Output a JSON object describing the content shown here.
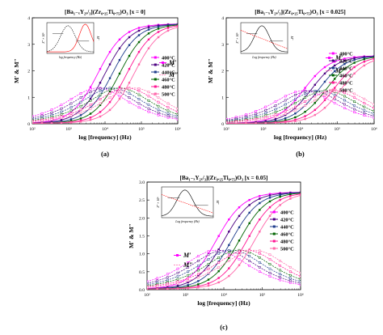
{
  "chart_data": [
    {
      "type": "line",
      "panel": "a",
      "title": "[Ba₁₋ₓY₂ₓ/₃](Zr₀.₂₅Ti₀.₇₅)O₃ [x = 0]",
      "xlabel": "log [frequency] (Hz)",
      "ylabel": "M′ & M″",
      "caption": "(a)",
      "xscale": "log",
      "xlim": [
        100,
        1000000
      ],
      "ylim": [
        0,
        4
      ],
      "xticks": [
        "10²",
        "10³",
        "10⁴",
        "10⁵",
        "10⁶"
      ],
      "yticks": [
        "0",
        "1",
        "2",
        "3",
        "4"
      ],
      "legend": [
        "400°C",
        "420°C",
        "440°C",
        "460°C",
        "480°C",
        "500°C"
      ],
      "legend_position": "center-right",
      "mlabels": {
        "prime": "M′",
        "dprime": "M″"
      },
      "mprime_max": 3.75,
      "mdprime_peak": 1.35,
      "peak_log_freq": [
        3.8,
        4.0,
        4.2,
        4.4,
        4.6,
        4.8
      ],
      "inset": {
        "xlabel": "log frequency (Hz)",
        "ylabel_left": "Z″ × 10⁵",
        "ylabel_right": "M″"
      }
    },
    {
      "type": "line",
      "panel": "b",
      "title": "[Ba₁₋ₓY₂ₓ/₃](Zr₀.₂₅Ti₀.₇₅)O₃ [x = 0.025]",
      "xlabel": "log [frequency] (Hz)",
      "ylabel": "M′ & M″",
      "caption": "(b)",
      "xscale": "log",
      "xlim": [
        100,
        1000000
      ],
      "ylim": [
        0,
        4
      ],
      "xticks": [
        "10²",
        "10³",
        "10⁴",
        "10⁵",
        "10⁶"
      ],
      "yticks": [
        "0",
        "1",
        "2",
        "3",
        "4"
      ],
      "legend": [
        "400°C",
        "420°C",
        "440°C",
        "460°C",
        "480°C",
        "500°C"
      ],
      "legend_position": "center-left",
      "mlabels": {
        "prime": "M′",
        "dprime": "M″"
      },
      "mprime_max": 2.55,
      "mdprime_peak": 1.25,
      "peak_log_freq": [
        4.1,
        4.3,
        4.5,
        4.7,
        4.9,
        5.1
      ],
      "inset": {
        "xlabel": "Log frequency (Hz)",
        "ylabel_left": "Z″ × 10⁵",
        "ylabel_right": "M″"
      }
    },
    {
      "type": "line",
      "panel": "c",
      "title": "[Ba₁₋ₓY₂ₓ/₃](Zr₀.₂₅Ti₀.₇₅)O₃ [x = 0.05]",
      "xlabel": "log [frequency] (Hz)",
      "ylabel": "M′ & M″",
      "caption": "(c)",
      "xscale": "log",
      "xlim": [
        100,
        1000000
      ],
      "ylim": [
        0,
        3
      ],
      "xticks": [
        "10²",
        "10³",
        "10⁴",
        "10⁵",
        "10⁶"
      ],
      "yticks": [
        "0.0",
        "0.5",
        "1.0",
        "1.5",
        "2.0",
        "2.5",
        "3.0"
      ],
      "legend": [
        "400°C",
        "420°C",
        "440°C",
        "460°C",
        "480°C",
        "500°C"
      ],
      "legend_position": "center-right",
      "mlabels": {
        "prime": "M′",
        "dprime": "M″"
      },
      "mprime_max": 2.7,
      "mdprime_peak": 1.1,
      "peak_log_freq": [
        3.8,
        4.0,
        4.2,
        4.4,
        4.6,
        4.8
      ],
      "inset": {
        "xlabel": "Log frequency (Hz)",
        "ylabel_left": "Z″ × 10⁵",
        "ylabel_right": "M″"
      }
    }
  ],
  "series_colors": [
    "#ff00ff",
    "#4b0082",
    "#1e3c8c",
    "#006400",
    "#ff1493",
    "#ff66aa"
  ],
  "inset_colors": {
    "z": "#000000",
    "m": "#ff0000"
  }
}
